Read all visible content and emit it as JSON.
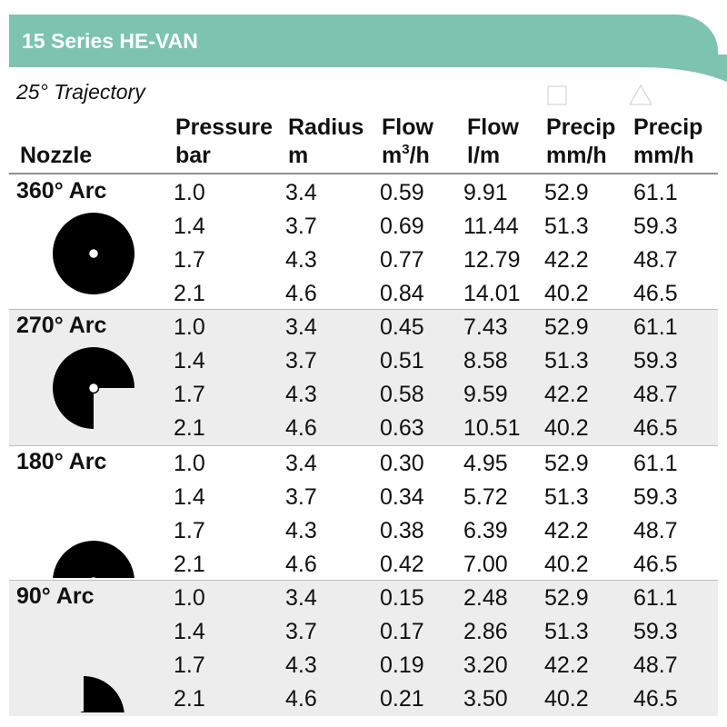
{
  "title": "15 Series HE-VAN",
  "trajectory": "25° Trajectory",
  "columns": [
    {
      "line1": "Nozzle",
      "line2": ""
    },
    {
      "line1": "Pressure",
      "line2": "bar"
    },
    {
      "line1": "Radius",
      "line2": "m"
    },
    {
      "line1": "Flow",
      "line2": "m",
      "sup": "3",
      "tail": "/h"
    },
    {
      "line1": "Flow",
      "line2": "l/m"
    },
    {
      "line1": "Precip",
      "line2": "mm/h",
      "symbol": "square-icon"
    },
    {
      "line1": "Precip",
      "line2": "mm/h",
      "symbol": "triangle-icon"
    }
  ],
  "colors": {
    "header_bg": "#7dc3b0",
    "shaded_bg": "#ededed",
    "icon": "#000000"
  },
  "groups": [
    {
      "label": "360° Arc",
      "icon": "full-circle-icon",
      "rows": [
        [
          "1.0",
          "3.4",
          "0.59",
          "9.91",
          "52.9",
          "61.1"
        ],
        [
          "1.4",
          "3.7",
          "0.69",
          "11.44",
          "51.3",
          "59.3"
        ],
        [
          "1.7",
          "4.3",
          "0.77",
          "12.79",
          "42.2",
          "48.7"
        ],
        [
          "2.1",
          "4.6",
          "0.84",
          "14.01",
          "40.2",
          "46.5"
        ]
      ]
    },
    {
      "label": "270° Arc",
      "icon": "three-quarter-circle-icon",
      "rows": [
        [
          "1.0",
          "3.4",
          "0.45",
          "7.43",
          "52.9",
          "61.1"
        ],
        [
          "1.4",
          "3.7",
          "0.51",
          "8.58",
          "51.3",
          "59.3"
        ],
        [
          "1.7",
          "4.3",
          "0.58",
          "9.59",
          "42.2",
          "48.7"
        ],
        [
          "2.1",
          "4.6",
          "0.63",
          "10.51",
          "40.2",
          "46.5"
        ]
      ]
    },
    {
      "label": "180° Arc",
      "icon": "half-circle-icon",
      "rows": [
        [
          "1.0",
          "3.4",
          "0.30",
          "4.95",
          "52.9",
          "61.1"
        ],
        [
          "1.4",
          "3.7",
          "0.34",
          "5.72",
          "51.3",
          "59.3"
        ],
        [
          "1.7",
          "4.3",
          "0.38",
          "6.39",
          "42.2",
          "48.7"
        ],
        [
          "2.1",
          "4.6",
          "0.42",
          "7.00",
          "40.2",
          "46.5"
        ]
      ]
    },
    {
      "label": "90° Arc",
      "icon": "quarter-circle-icon",
      "rows": [
        [
          "1.0",
          "3.4",
          "0.15",
          "2.48",
          "52.9",
          "61.1"
        ],
        [
          "1.4",
          "3.7",
          "0.17",
          "2.86",
          "51.3",
          "59.3"
        ],
        [
          "1.7",
          "4.3",
          "0.19",
          "3.20",
          "42.2",
          "48.7"
        ],
        [
          "2.1",
          "4.6",
          "0.21",
          "3.50",
          "40.2",
          "46.5"
        ]
      ]
    }
  ]
}
